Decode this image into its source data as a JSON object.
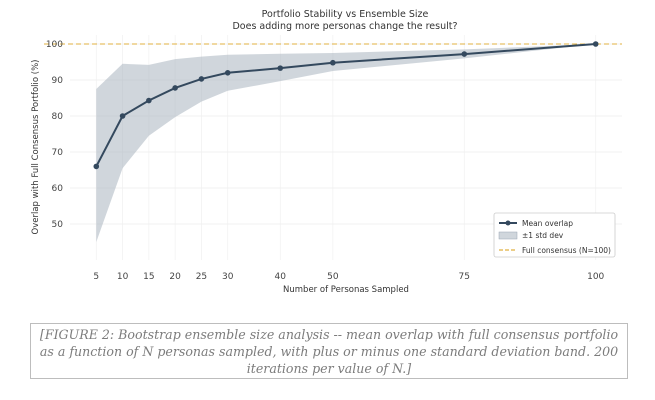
{
  "chart_data": {
    "type": "line",
    "title": "Portfolio Stability vs Ensemble Size",
    "subtitle": "Does adding more personas change the result?",
    "xlabel": "Number of Personas Sampled",
    "ylabel": "Overlap with Full Consensus Portfolio (%)",
    "x": [
      5,
      10,
      15,
      20,
      25,
      30,
      40,
      50,
      75,
      100
    ],
    "xticks": [
      "5",
      "10",
      "15",
      "20",
      "25",
      "30",
      "40",
      "50",
      "75",
      "100"
    ],
    "yticks": [
      50,
      60,
      70,
      80,
      90,
      100
    ],
    "xlim": [
      0,
      105
    ],
    "ylim": [
      40,
      102.5
    ],
    "grid": true,
    "legend_position": "lower-right",
    "series": [
      {
        "name": "Mean overlap",
        "color": "#34495e",
        "values": [
          66,
          80,
          84.3,
          87.8,
          90.3,
          92,
          93.3,
          94.8,
          97.2,
          100
        ]
      }
    ],
    "band": {
      "name": "±1 std dev",
      "color": "#a9b4c0",
      "lower": [
        45,
        65.5,
        74.5,
        79.7,
        84,
        87,
        89.7,
        92.5,
        96,
        100
      ],
      "upper": [
        87.5,
        94.5,
        94.2,
        95.8,
        96.5,
        97,
        97.3,
        97.5,
        98.5,
        100
      ]
    },
    "reference_line": {
      "name": "Full consensus (N=100)",
      "y": 100,
      "color": "#e0b040"
    }
  },
  "caption": "[FIGURE 2: Bootstrap ensemble size analysis -- mean overlap with full consensus portfolio as a function of N personas sampled, with plus or minus one standard deviation band. 200 iterations per value of N.]"
}
